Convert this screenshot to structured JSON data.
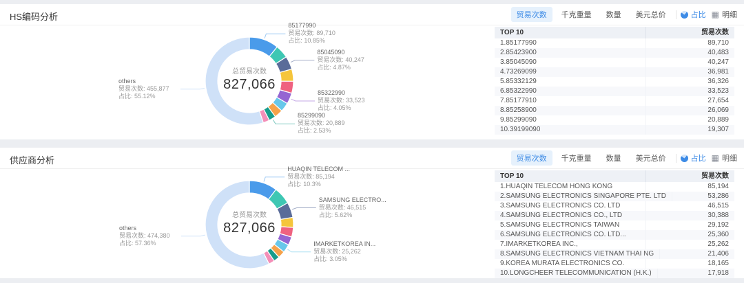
{
  "page": {
    "background": "#eceef2",
    "accent": "#3d8be6",
    "accent_bg": "#e6f1fc"
  },
  "panels": [
    {
      "title": "HS编码分析",
      "toolbar": {
        "metric_tabs": [
          {
            "label": "贸易次数",
            "active": true
          },
          {
            "label": "千克重量",
            "active": false
          },
          {
            "label": "数量",
            "active": false
          },
          {
            "label": "美元总价",
            "active": false
          }
        ],
        "view_toggles": [
          {
            "label": "占比",
            "icon": "pie-icon",
            "active": true
          },
          {
            "label": "明细",
            "icon": "table-icon",
            "active": false
          }
        ]
      },
      "chart_data": {
        "type": "pie",
        "title": "HS编码分析 - 贸易次数占比",
        "center_label": "总贸易次数",
        "total_display": "827,066",
        "total_value": 827066,
        "value_prefix": "贸易次数: ",
        "pct_prefix": "占比: ",
        "segments": [
          {
            "name": "85177990",
            "value": 89710,
            "color": "#4a9bea"
          },
          {
            "name": "85423900",
            "value": 40483,
            "color": "#3ec7b3"
          },
          {
            "name": "85045090",
            "value": 40247,
            "color": "#5a6c99"
          },
          {
            "name": "73269099",
            "value": 36981,
            "color": "#f5c53c"
          },
          {
            "name": "85332129",
            "value": 36326,
            "color": "#ef6280"
          },
          {
            "name": "85322990",
            "value": 33523,
            "color": "#9565d2"
          },
          {
            "name": "85177910",
            "value": 27654,
            "color": "#67c7ea"
          },
          {
            "name": "85258900",
            "value": 26069,
            "color": "#f5a24a"
          },
          {
            "name": "85299090",
            "value": 20889,
            "color": "#179c8c"
          },
          {
            "name": "39199090",
            "value": 19307,
            "color": "#f48fb8"
          },
          {
            "name": "others",
            "value": 455877,
            "color": "#cfe1f8"
          }
        ],
        "callouts": [
          {
            "segment": 0,
            "label": "85177990",
            "value": "89,710",
            "pct": "10.85%"
          },
          {
            "segment": 2,
            "label": "85045090",
            "value": "40,247",
            "pct": "4.87%"
          },
          {
            "segment": 5,
            "label": "85322990",
            "value": "33,523",
            "pct": "4.05%"
          },
          {
            "segment": 8,
            "label": "85299090",
            "value": "20,889",
            "pct": "2.53%"
          },
          {
            "segment": 10,
            "label": "others",
            "value": "455,877",
            "pct": "55.12%"
          }
        ]
      },
      "table": {
        "header_left": "TOP 10",
        "header_right": "贸易次数",
        "rows": [
          {
            "label": "1.85177990",
            "value": "89,710"
          },
          {
            "label": "2.85423900",
            "value": "40,483"
          },
          {
            "label": "3.85045090",
            "value": "40,247"
          },
          {
            "label": "4.73269099",
            "value": "36,981"
          },
          {
            "label": "5.85332129",
            "value": "36,326"
          },
          {
            "label": "6.85322990",
            "value": "33,523"
          },
          {
            "label": "7.85177910",
            "value": "27,654"
          },
          {
            "label": "8.85258900",
            "value": "26,069"
          },
          {
            "label": "9.85299090",
            "value": "20,889"
          },
          {
            "label": "10.39199090",
            "value": "19,307"
          }
        ]
      }
    },
    {
      "title": "供应商分析",
      "toolbar": {
        "metric_tabs": [
          {
            "label": "贸易次数",
            "active": true
          },
          {
            "label": "千克重量",
            "active": false
          },
          {
            "label": "数量",
            "active": false
          },
          {
            "label": "美元总价",
            "active": false
          }
        ],
        "view_toggles": [
          {
            "label": "占比",
            "icon": "pie-icon",
            "active": true
          },
          {
            "label": "明细",
            "icon": "table-icon",
            "active": false
          }
        ]
      },
      "chart_data": {
        "type": "pie",
        "title": "供应商分析 - 贸易次数占比",
        "center_label": "总贸易次数",
        "total_display": "827,066",
        "total_value": 827066,
        "value_prefix": "贸易次数: ",
        "pct_prefix": "占比: ",
        "segments": [
          {
            "name": "HUAQIN TELECOM HONG KONG",
            "value": 85194,
            "color": "#4a9bea"
          },
          {
            "name": "SAMSUNG ELECTRONICS SINGAPORE PTE. LTD",
            "value": 53286,
            "color": "#3ec7b3"
          },
          {
            "name": "SAMSUNG ELECTRONICS CO. LTD",
            "value": 46515,
            "color": "#5a6c99"
          },
          {
            "name": "SAMSUNG ELECTRONICS CO., LTD",
            "value": 30388,
            "color": "#f5c53c"
          },
          {
            "name": "SAMSUNG ELECTRONICS TAIWAN",
            "value": 29192,
            "color": "#ef6280"
          },
          {
            "name": "SAMSUNG ELECTRONICS CO. LTD...",
            "value": 25360,
            "color": "#9565d2"
          },
          {
            "name": "IMARKETKOREA INC.,",
            "value": 25262,
            "color": "#67c7ea"
          },
          {
            "name": "SAMSUNG ELECTRONICS VIETNAM THAI NG",
            "value": 21406,
            "color": "#f5a24a"
          },
          {
            "name": "KOREA MURATA ELECTRONICS CO.",
            "value": 18165,
            "color": "#179c8c"
          },
          {
            "name": "LONGCHEER TELECOMMUNICATION (H.K.)",
            "value": 17918,
            "color": "#f48fb8"
          },
          {
            "name": "others",
            "value": 474380,
            "color": "#cfe1f8"
          }
        ],
        "callouts": [
          {
            "segment": 0,
            "label": "HUAQIN TELECOM ...",
            "value": "85,194",
            "pct": "10.3%"
          },
          {
            "segment": 2,
            "label": "SAMSUNG ELECTRO...",
            "value": "46,515",
            "pct": "5.62%"
          },
          {
            "segment": 6,
            "label": "IMARKETKOREA IN...",
            "value": "25,262",
            "pct": "3.05%"
          },
          {
            "segment": 10,
            "label": "others",
            "value": "474,380",
            "pct": "57.36%"
          }
        ]
      },
      "table": {
        "header_left": "TOP 10",
        "header_right": "贸易次数",
        "rows": [
          {
            "label": "1.HUAQIN TELECOM HONG KONG",
            "value": "85,194"
          },
          {
            "label": "2.SAMSUNG ELECTRONICS SINGAPORE PTE. LTD",
            "value": "53,286"
          },
          {
            "label": "3.SAMSUNG ELECTRONICS CO. LTD",
            "value": "46,515"
          },
          {
            "label": "4.SAMSUNG ELECTRONICS CO., LTD",
            "value": "30,388"
          },
          {
            "label": "5.SAMSUNG ELECTRONICS TAIWAN",
            "value": "29,192"
          },
          {
            "label": "6.SAMSUNG ELECTRONICS CO. LTD...",
            "value": "25,360"
          },
          {
            "label": "7.IMARKETKOREA INC.,",
            "value": "25,262"
          },
          {
            "label": "8.SAMSUNG ELECTRONICS VIETNAM THAI NG",
            "value": "21,406"
          },
          {
            "label": "9.KOREA MURATA ELECTRONICS CO.",
            "value": "18,165"
          },
          {
            "label": "10.LONGCHEER TELECOMMUNICATION (H.K.)",
            "value": "17,918"
          }
        ]
      }
    }
  ]
}
